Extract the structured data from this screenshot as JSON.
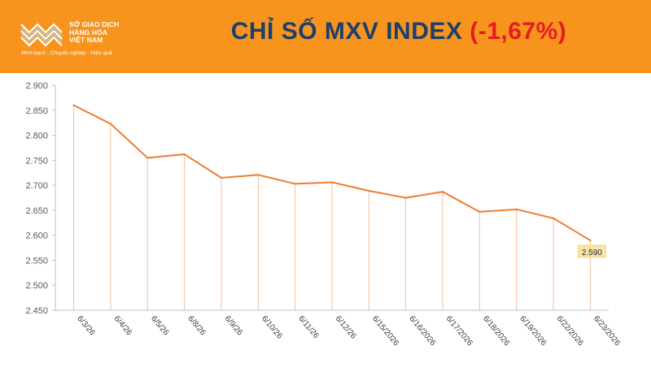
{
  "header": {
    "title_main": "CHỈ SỐ MXV INDEX",
    "title_change": "(-1,67%)",
    "logo_text": "SỞ GIAO DỊCH\nHÀNG HÓA\nVIỆT NAM",
    "logo_slogan": "Minh bạch - Chuyên nghiệp - Hiệu quả",
    "logo_icon": "mxv-logo-icon",
    "colors": {
      "banner": "#f7941d",
      "title": "#1c3f6e",
      "change": "#e61c24"
    }
  },
  "chart_data": {
    "type": "line",
    "title": "",
    "xlabel": "",
    "ylabel": "",
    "ylim": [
      2450,
      2900
    ],
    "yticks": [
      2450,
      2500,
      2550,
      2600,
      2650,
      2700,
      2750,
      2800,
      2850,
      2900
    ],
    "ytick_labels": [
      "2.450",
      "2.500",
      "2.550",
      "2.600",
      "2.650",
      "2.700",
      "2.750",
      "2.800",
      "2.850",
      "2.900"
    ],
    "categories": [
      "6/3/26",
      "6/4/26",
      "6/5/26",
      "6/8/26",
      "6/9/26",
      "6/10/26",
      "6/11/26",
      "6/12/26",
      "6/15/2026",
      "6/16/2026",
      "6/17/2026",
      "6/18/2026",
      "6/19/2026",
      "6/22/2026",
      "6/23/2026"
    ],
    "values": [
      2860,
      2823,
      2755,
      2762,
      2715,
      2721,
      2703,
      2706,
      2689,
      2675,
      2687,
      2647,
      2652,
      2634,
      2590
    ],
    "last_value_label": "2.590",
    "line_color": "#ed7d31",
    "drop_line_color": "#f4b183",
    "label_box_color": "#fbe5a6",
    "grid": false,
    "legend": "none"
  }
}
